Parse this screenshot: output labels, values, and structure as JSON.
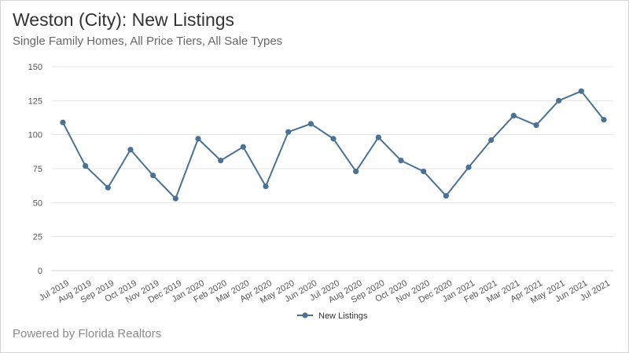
{
  "header": {
    "title": "Weston (City): New Listings",
    "subtitle": "Single Family Homes, All Price Tiers, All Sale Types"
  },
  "footer": {
    "text": "Powered by Florida Realtors"
  },
  "colors": {
    "series": "#4b7294",
    "grid": "#e3e3e3",
    "axis": "#cfcfcf",
    "text": "#555555"
  },
  "chart_data": {
    "type": "line",
    "title": "Weston (City): New Listings",
    "subtitle": "Single Family Homes, All Price Tiers, All Sale Types",
    "xlabel": "",
    "ylabel": "",
    "ylim": [
      0,
      150
    ],
    "yticks": [
      0,
      25,
      50,
      75,
      100,
      125,
      150
    ],
    "grid": true,
    "legend": "bottom-center",
    "categories": [
      "Jul 2019",
      "Aug 2019",
      "Sep 2019",
      "Oct 2019",
      "Nov 2019",
      "Dec 2019",
      "Jan 2020",
      "Feb 2020",
      "Mar 2020",
      "Apr 2020",
      "May 2020",
      "Jun 2020",
      "Jul 2020",
      "Aug 2020",
      "Sep 2020",
      "Oct 2020",
      "Nov 2020",
      "Dec 2020",
      "Jan 2021",
      "Feb 2021",
      "Mar 2021",
      "Apr 2021",
      "May 2021",
      "Jun 2021",
      "Jul 2021"
    ],
    "series": [
      {
        "name": "New Listings",
        "values": [
          109,
          77,
          61,
          89,
          70,
          53,
          97,
          81,
          91,
          62,
          102,
          108,
          97,
          73,
          98,
          81,
          73,
          55,
          76,
          96,
          114,
          107,
          125,
          132,
          111
        ]
      }
    ]
  }
}
